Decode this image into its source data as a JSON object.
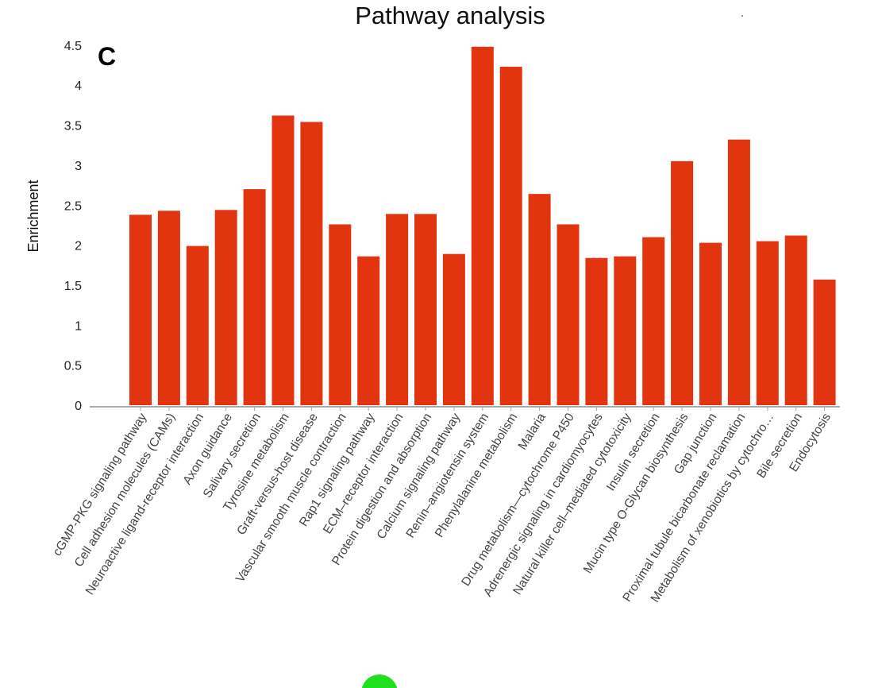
{
  "panel_label": "C",
  "chart_data": {
    "type": "bar",
    "title": "Pathway analysis",
    "xlabel": "",
    "ylabel": "Enrichment",
    "ylim": [
      0,
      4.6
    ],
    "yticks": [
      0,
      0.5,
      1,
      1.5,
      2,
      2.5,
      3,
      3.5,
      4,
      4.5
    ],
    "ytick_labels": [
      "0",
      "0.5",
      "1",
      "1.5",
      "2",
      "2.5",
      "3",
      "3.5",
      "4",
      "4.5"
    ],
    "grid": false,
    "bar_color": "#e2340f",
    "categories": [
      "cGMP-PKG signaling pathway",
      "Cell adhesion molecules (CAMs)",
      "Neuroactive ligand-receptor interaction",
      "Axon guidance",
      "Salivary secretion",
      "Tyrosine metabolism",
      "Graft-versus-host disease",
      "Vascular smooth muscle contraction",
      "Rap1 signaling pathway",
      "ECM–receptor interaction",
      "Protein digestion and absorption",
      "Calcium signaling pathway",
      "Renin–angiotensin system",
      "Phenylalanine metabolism",
      "Malaria",
      "Drug metabolism—cytochrome P450",
      "Adrenergic signaling in cardiomyocytes",
      "Natural killer cell–mediated cytotoxicity",
      "Insulin secretion",
      "Mucin type O-Glycan biosynthesis",
      "Gap junction",
      "Proximal tubule bicarbonate reclamation",
      "Metabolism of xenobiotics by cytochro…",
      "Bile secretion",
      "Endocytosis"
    ],
    "values": [
      2.38,
      2.43,
      1.99,
      2.44,
      2.7,
      3.62,
      3.54,
      2.26,
      1.86,
      2.39,
      2.39,
      1.89,
      4.48,
      4.23,
      2.64,
      2.26,
      1.84,
      1.86,
      2.1,
      3.05,
      2.03,
      3.32,
      2.05,
      2.12,
      1.57
    ]
  }
}
